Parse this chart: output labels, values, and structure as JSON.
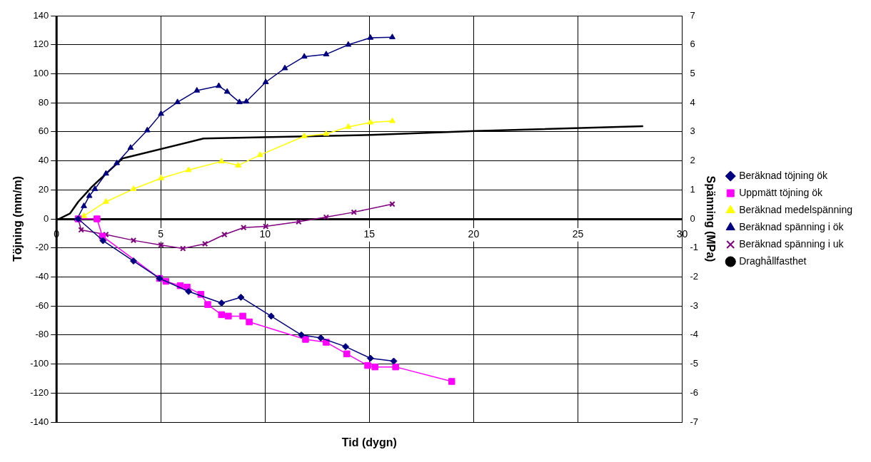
{
  "chart_data": {
    "type": "line",
    "xlabel": "Tid (dygn)",
    "ylabel": "Töjning (mm/m)",
    "y2label": "Spänning (MPa)",
    "xlim": [
      0,
      30
    ],
    "xticks": [
      0,
      5,
      10,
      15,
      20,
      25,
      30
    ],
    "ylim": [
      -140,
      140
    ],
    "yticks": [
      -140,
      -120,
      -100,
      -80,
      -60,
      -40,
      -20,
      0,
      20,
      40,
      60,
      80,
      100,
      120,
      140
    ],
    "y2lim": [
      -7,
      7
    ],
    "y2ticks": [
      -7,
      -6,
      -5,
      -4,
      -3,
      -2,
      -1,
      0,
      1,
      2,
      3,
      4,
      5,
      6,
      7
    ],
    "grid": true,
    "legend": "right",
    "series": [
      {
        "name": "Beräknad töjning ök",
        "color": "#000080",
        "marker": "diamond",
        "x": [
          1.04,
          2.23,
          3.69,
          4.94,
          6.33,
          7.91,
          8.84,
          10.29,
          11.74,
          12.67,
          13.86,
          15.05,
          16.17
        ],
        "values": [
          0,
          -15,
          -29,
          -41,
          -50,
          -58,
          -54,
          -67,
          -80,
          -82,
          -88,
          -96,
          -98
        ]
      },
      {
        "name": "Uppmätt töjning ök",
        "color": "#ff00ff",
        "marker": "square",
        "x": [
          1.04,
          1.94,
          2.2,
          4.94,
          5.24,
          5.93,
          6.26,
          6.92,
          7.25,
          7.91,
          8.24,
          8.93,
          9.24,
          11.94,
          12.93,
          13.92,
          14.92,
          15.27,
          16.26,
          18.95
        ],
        "values": [
          0,
          0,
          -12,
          -41,
          -43,
          -46,
          -47,
          -52,
          -59,
          -66,
          -67,
          -67,
          -71,
          -83,
          -85,
          -93,
          -101,
          -102,
          -102,
          -112
        ]
      },
      {
        "name": "Beräknad medelspänning",
        "color": "#ffff00",
        "marker": "triangle",
        "axis": "y2",
        "x": [
          1.31,
          2.37,
          3.69,
          5.01,
          6.33,
          7.91,
          8.71,
          9.76,
          11.88,
          12.93,
          13.99,
          15.05,
          16.1
        ],
        "values": [
          0.1,
          0.59,
          1.03,
          1.4,
          1.68,
          1.98,
          1.84,
          2.2,
          2.85,
          2.93,
          3.17,
          3.32,
          3.37
        ]
      },
      {
        "name": "Beräknad spänning i ök",
        "color": "#000080",
        "marker": "triangle",
        "axis": "y2",
        "x": [
          0.98,
          1.31,
          1.57,
          1.84,
          2.37,
          2.89,
          3.55,
          4.35,
          5.01,
          5.8,
          6.73,
          7.78,
          8.18,
          8.77,
          9.1,
          10.03,
          10.95,
          11.88,
          12.93,
          13.99,
          15.05,
          16.1
        ],
        "values": [
          0,
          0.44,
          0.79,
          1.03,
          1.56,
          1.92,
          2.45,
          3.05,
          3.62,
          4.02,
          4.42,
          4.58,
          4.38,
          4.02,
          4.04,
          4.71,
          5.19,
          5.59,
          5.67,
          6.0,
          6.24,
          6.26
        ]
      },
      {
        "name": "Beräknad spänning i uk",
        "color": "#800080",
        "marker": "cross",
        "axis": "y2",
        "x": [
          1.04,
          1.18,
          2.37,
          3.69,
          5.01,
          6.06,
          7.12,
          8.05,
          8.97,
          10.03,
          11.61,
          12.93,
          14.26,
          16.1
        ],
        "values": [
          0,
          -0.38,
          -0.54,
          -0.74,
          -0.9,
          -1.02,
          -0.86,
          -0.54,
          -0.3,
          -0.26,
          -0.1,
          0.06,
          0.23,
          0.51
        ]
      },
      {
        "name": "Draghållfasthet",
        "color": "#000000",
        "marker": "none",
        "axis": "y2",
        "x": [
          0.12,
          0.65,
          1.04,
          1.7,
          3.16,
          7.05,
          15.07,
          20.07,
          28.13
        ],
        "values": [
          0,
          0.19,
          0.59,
          1.11,
          2.08,
          2.77,
          2.89,
          3.03,
          3.19
        ]
      }
    ]
  }
}
